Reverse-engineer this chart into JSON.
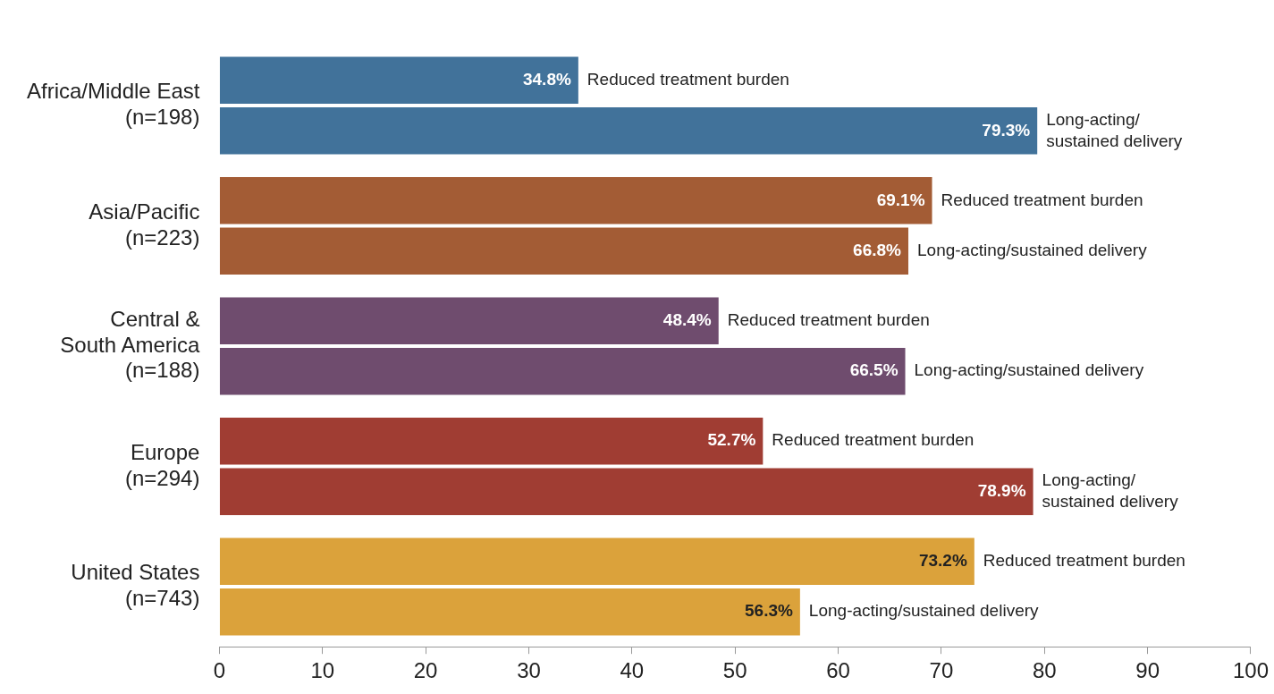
{
  "chart_data": {
    "type": "bar",
    "orientation": "horizontal",
    "categories": [
      "Africa/Middle East\n(n=198)",
      "Asia/Pacific\n(n=223)",
      "Central &\nSouth America\n(n=188)",
      "Europe\n(n=294)",
      "United States\n(n=743)"
    ],
    "series": [
      {
        "name": "Reduced treatment burden",
        "colors": [
          "#41729a",
          "#a35c35",
          "#6f4c6e",
          "#a03d33",
          "#dba23b"
        ],
        "values": [
          34.8,
          69.1,
          48.4,
          52.7,
          73.2
        ],
        "value_labels": [
          "34.8%",
          "69.1%",
          "48.4%",
          "52.7%",
          "73.2%"
        ]
      },
      {
        "name": "Long-acting/sustained delivery",
        "colors": [
          "#41729a",
          "#a35c35",
          "#6f4c6e",
          "#a03d33",
          "#dba23b"
        ],
        "values": [
          79.3,
          66.8,
          66.5,
          78.9,
          56.3
        ],
        "value_labels": [
          "79.3%",
          "66.8%",
          "66.5%",
          "78.9%",
          "56.3%"
        ]
      }
    ],
    "xlim": [
      0,
      100
    ],
    "xticks": [
      0,
      10,
      20,
      30,
      40,
      50,
      60,
      70,
      80,
      90,
      100
    ],
    "grid": false,
    "legend": false
  }
}
